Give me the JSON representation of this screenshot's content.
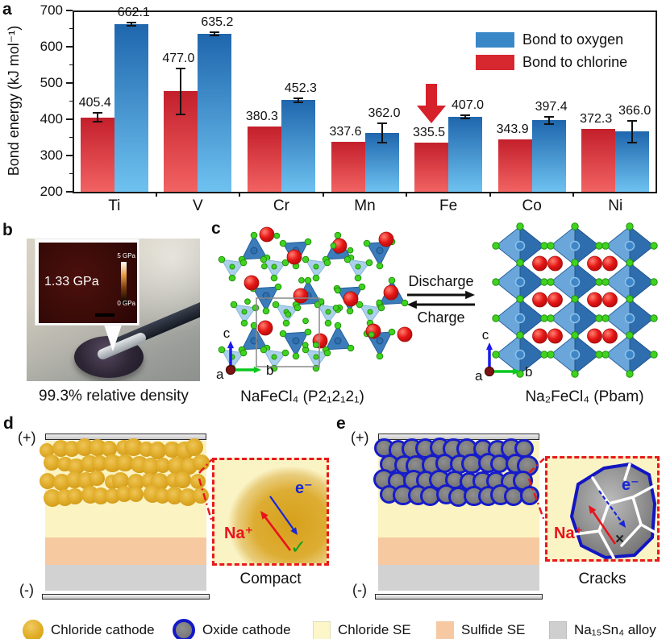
{
  "panels": {
    "a": {
      "label": "a"
    },
    "b": {
      "label": "b",
      "inset_value": "1.33 GPa",
      "scale_top": "5 GPa",
      "scale_bottom": "0 GPa",
      "caption": "99.3% relative density"
    },
    "c": {
      "label": "c",
      "forward": "Discharge",
      "backward": "Charge",
      "axis_a": "a",
      "axis_b": "b",
      "axis_c": "c",
      "left_formula": "NaFeCl₄ (P2₁2₁2₁)",
      "right_formula": "Na₂FeCl₄ (Pbam)"
    },
    "d": {
      "label": "d",
      "positive": "(+)",
      "negative": "(-)",
      "ion": "Na⁺",
      "electron": "e⁻",
      "mark": "✓",
      "caption": "Compact"
    },
    "e": {
      "label": "e",
      "positive": "(+)",
      "negative": "(-)",
      "ion": "Na⁺",
      "electron": "e⁻",
      "mark": "×",
      "caption": "Cracks"
    }
  },
  "chart_data": {
    "type": "bar",
    "title": "",
    "xlabel": "",
    "ylabel": "Bond energy (kJ mol⁻¹)",
    "ylim": [
      200,
      700
    ],
    "yticks": [
      200,
      300,
      400,
      500,
      600,
      700
    ],
    "categories": [
      "Ti",
      "V",
      "Cr",
      "Mn",
      "Fe",
      "Co",
      "Ni"
    ],
    "series": [
      {
        "name": "Bond to chlorine",
        "color": "#d7282f",
        "color_top": "#c31f2b",
        "color_bottom": "#f26363",
        "values": [
          405.4,
          477.0,
          380.3,
          337.6,
          335.5,
          343.9,
          372.3
        ],
        "errors": [
          12,
          63,
          0,
          0,
          0,
          0,
          0
        ]
      },
      {
        "name": "Bond to oxygen",
        "color": "#3a87c8",
        "color_top": "#1f66ad",
        "color_bottom": "#6ec2f0",
        "values": [
          662.1,
          635.2,
          452.3,
          362.0,
          407.0,
          397.4,
          366.0
        ],
        "errors": [
          4,
          4,
          5,
          27,
          4,
          10,
          30
        ]
      }
    ],
    "legend": [
      {
        "label": "Bond to oxygen",
        "color": "#3a87c8"
      },
      {
        "label": "Bond to chlorine",
        "color": "#d7282f"
      }
    ],
    "legend_position": "top-right",
    "grid": false,
    "annotation": {
      "type": "arrow-down",
      "target_category": "Fe",
      "target_series": "Bond to chlorine",
      "color": "#d6212b"
    }
  },
  "legend_bottom": {
    "items": [
      {
        "label": "Chloride cathode",
        "swatch": "gold-sphere"
      },
      {
        "label": "Oxide cathode",
        "swatch": "gray-circle-blue-ring"
      },
      {
        "label": "Chloride SE",
        "swatch": "light-yellow-square"
      },
      {
        "label": "Sulfide SE",
        "swatch": "peach-square"
      },
      {
        "label": "Na₁₅Sn₄ alloy",
        "swatch": "gray-square"
      }
    ]
  },
  "colors": {
    "chloride_se": "#fbf3c2",
    "sulfide_se": "#f7c9a1",
    "alloy": "#d2d2d2",
    "electrode": "#d8d8d8",
    "chloride_cathode": "#dda81e",
    "oxide_cathode": "#7d7d7d",
    "oxide_ring": "#1318c8",
    "inset_border": "#e8191d",
    "na_ion_text": "#e8131b",
    "electron_text": "#1726d8",
    "check_mark": "#12a11a"
  }
}
